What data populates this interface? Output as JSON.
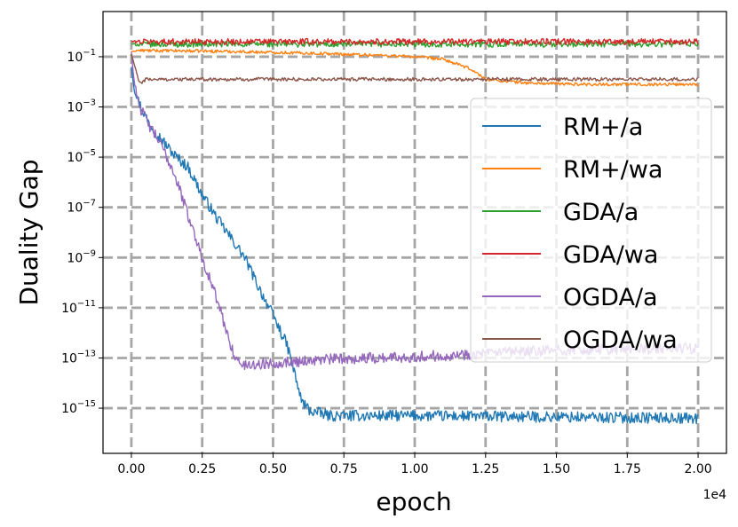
{
  "chart_data": {
    "type": "line",
    "title": "",
    "xlabel": "epoch",
    "ylabel": "Duality Gap",
    "x_scale_note": "1e4",
    "xlim": [
      -0.1,
      2.1
    ],
    "ylog_lim": [
      -16.8,
      0.8
    ],
    "xticks": [
      0.0,
      0.25,
      0.5,
      0.75,
      1.0,
      1.25,
      1.5,
      1.75,
      2.0
    ],
    "xtick_labels": [
      "0.00",
      "0.25",
      "0.50",
      "0.75",
      "1.00",
      "1.25",
      "1.50",
      "1.75",
      "2.00"
    ],
    "ytick_exponents": [
      -1,
      -3,
      -5,
      -7,
      -9,
      -11,
      -13,
      -15
    ],
    "ytick_labels": [
      "10",
      "10",
      "10",
      "10",
      "10",
      "10",
      "10",
      "10"
    ],
    "ytick_sups": [
      "−1",
      "−3",
      "−5",
      "−7",
      "−9",
      "−11",
      "−13",
      "−15"
    ],
    "grid": true,
    "legend_position": "center-right",
    "series": [
      {
        "name": "RM+/a",
        "color": "#1f77b4",
        "noise": 0.22,
        "points": [
          [
            0,
            -1.4
          ],
          [
            0.01,
            -2.3
          ],
          [
            0.03,
            -2.9
          ],
          [
            0.06,
            -3.6
          ],
          [
            0.1,
            -4.2
          ],
          [
            0.15,
            -4.9
          ],
          [
            0.2,
            -5.4
          ],
          [
            0.25,
            -6.5
          ],
          [
            0.3,
            -7.4
          ],
          [
            0.35,
            -8.2
          ],
          [
            0.4,
            -9.0
          ],
          [
            0.45,
            -10.2
          ],
          [
            0.5,
            -11.3
          ],
          [
            0.55,
            -12.5
          ],
          [
            0.58,
            -13.8
          ],
          [
            0.6,
            -14.7
          ],
          [
            0.63,
            -15.1
          ],
          [
            0.7,
            -15.3
          ],
          [
            1.0,
            -15.3
          ],
          [
            1.5,
            -15.35
          ],
          [
            2.0,
            -15.4
          ]
        ]
      },
      {
        "name": "RM+/wa",
        "color": "#ff7f0e",
        "noise": 0.06,
        "points": [
          [
            0,
            -0.8
          ],
          [
            0.02,
            -0.75
          ],
          [
            0.3,
            -0.78
          ],
          [
            0.6,
            -0.85
          ],
          [
            0.9,
            -0.95
          ],
          [
            1.0,
            -1.0
          ],
          [
            1.1,
            -1.1
          ],
          [
            1.2,
            -1.5
          ],
          [
            1.25,
            -1.9
          ],
          [
            1.4,
            -2.05
          ],
          [
            1.6,
            -2.1
          ],
          [
            2.0,
            -2.1
          ]
        ]
      },
      {
        "name": "GDA/a",
        "color": "#2ca02c",
        "noise": 0.12,
        "points": [
          [
            0,
            -0.5
          ],
          [
            2.0,
            -0.5
          ]
        ]
      },
      {
        "name": "GDA/wa",
        "color": "#d62728",
        "noise": 0.12,
        "points": [
          [
            0,
            -0.4
          ],
          [
            2.0,
            -0.4
          ]
        ]
      },
      {
        "name": "OGDA/a",
        "color": "#9467bd",
        "noise": 0.22,
        "points": [
          [
            0,
            -0.8
          ],
          [
            0.01,
            -2.0
          ],
          [
            0.03,
            -3.0
          ],
          [
            0.06,
            -3.7
          ],
          [
            0.1,
            -4.4
          ],
          [
            0.15,
            -5.6
          ],
          [
            0.2,
            -7.3
          ],
          [
            0.25,
            -9.0
          ],
          [
            0.3,
            -10.6
          ],
          [
            0.34,
            -12.1
          ],
          [
            0.37,
            -13.1
          ],
          [
            0.4,
            -13.3
          ],
          [
            0.5,
            -13.2
          ],
          [
            0.7,
            -13.05
          ],
          [
            1.0,
            -12.95
          ],
          [
            1.5,
            -12.7
          ],
          [
            2.0,
            -12.6
          ]
        ]
      },
      {
        "name": "OGDA/wa",
        "color": "#8c564b",
        "noise": 0.07,
        "points": [
          [
            0,
            -0.9
          ],
          [
            0.03,
            -2.1
          ],
          [
            0.05,
            -1.9
          ],
          [
            2.0,
            -1.9
          ]
        ]
      }
    ]
  }
}
